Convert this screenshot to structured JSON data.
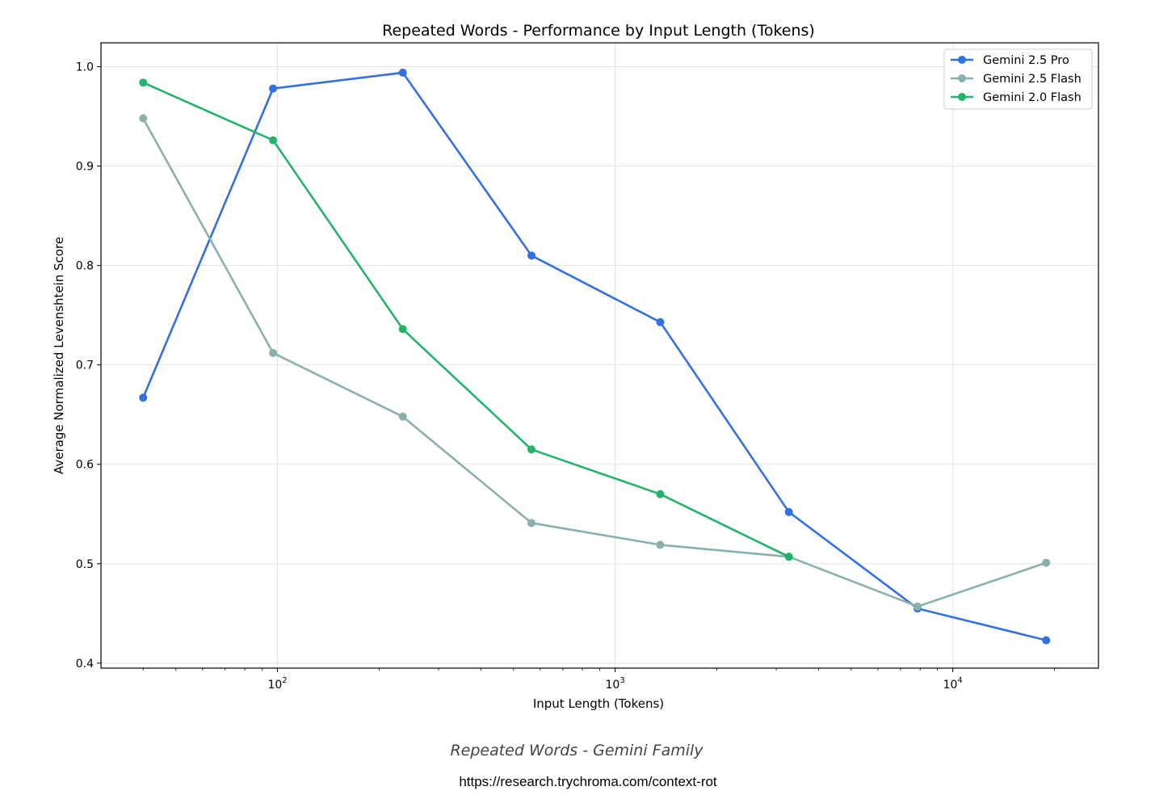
{
  "chart_data": {
    "type": "line",
    "title": "Repeated Words - Performance by Input Length (Tokens)",
    "xlabel": "Input Length (Tokens)",
    "ylabel": "Average Normalized Levenshtein Score",
    "xscale": "log",
    "xlim": [
      30,
      27000
    ],
    "ylim": [
      0.395,
      1.024
    ],
    "x_ticks": [
      {
        "value": 100,
        "base": "10",
        "exp": "2"
      },
      {
        "value": 1000,
        "base": "10",
        "exp": "3"
      },
      {
        "value": 10000,
        "base": "10",
        "exp": "4"
      }
    ],
    "y_ticks": [
      {
        "value": 0.4,
        "label": "0.4"
      },
      {
        "value": 0.5,
        "label": "0.5"
      },
      {
        "value": 0.6,
        "label": "0.6"
      },
      {
        "value": 0.7,
        "label": "0.7"
      },
      {
        "value": 0.8,
        "label": "0.8"
      },
      {
        "value": 0.9,
        "label": "0.9"
      },
      {
        "value": 1.0,
        "label": "1.0"
      }
    ],
    "grid": true,
    "legend_position": "top-right",
    "series": [
      {
        "name": "Gemini 2.5 Pro",
        "color": "#3370e0",
        "x": [
          40,
          97,
          235,
          565,
          1360,
          3270,
          7860,
          18900
        ],
        "y": [
          0.667,
          0.978,
          0.994,
          0.81,
          0.743,
          0.552,
          0.455,
          0.423
        ]
      },
      {
        "name": "Gemini 2.5 Flash",
        "color": "#8ab0ae",
        "x": [
          40,
          97,
          235,
          565,
          1360,
          3270,
          7860,
          18900
        ],
        "y": [
          0.948,
          0.712,
          0.648,
          0.541,
          0.519,
          0.507,
          0.457,
          0.501
        ]
      },
      {
        "name": "Gemini 2.0 Flash",
        "color": "#24b36b",
        "x": [
          40,
          97,
          235,
          565,
          1360,
          3270
        ],
        "y": [
          0.984,
          0.926,
          0.736,
          0.615,
          0.57,
          0.507
        ]
      }
    ]
  },
  "caption": "Repeated Words - Gemini Family",
  "source_url": "https://research.trychroma.com/context-rot"
}
